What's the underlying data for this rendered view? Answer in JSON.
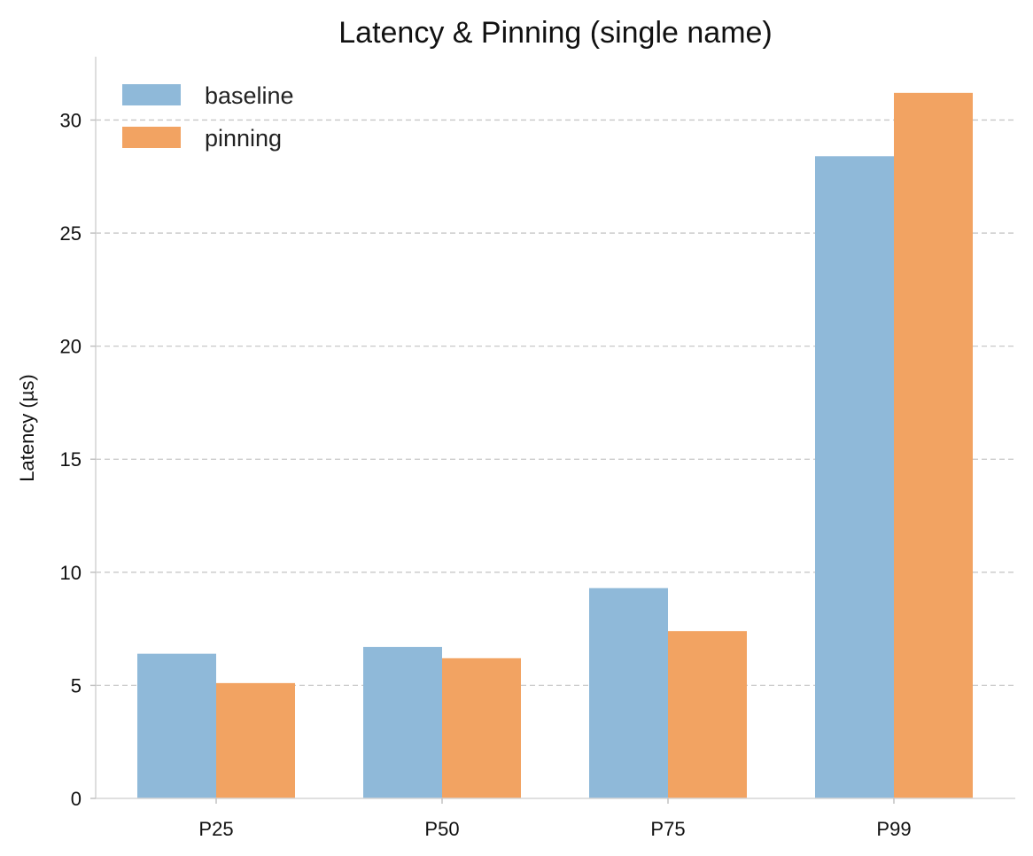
{
  "chart_data": {
    "type": "bar",
    "title": "Latency & Pinning (single name)",
    "xlabel": "",
    "ylabel": "Latency (µs)",
    "categories": [
      "P25",
      "P50",
      "P75",
      "P99"
    ],
    "series": [
      {
        "name": "baseline",
        "values": [
          6.4,
          6.7,
          9.3,
          28.4
        ],
        "color": "#8fb9d9"
      },
      {
        "name": "pinning",
        "values": [
          5.1,
          6.2,
          7.4,
          31.2
        ],
        "color": "#f2a362"
      }
    ],
    "ylim": [
      0,
      32.8
    ],
    "yticks": [
      0,
      5,
      10,
      15,
      20,
      25,
      30
    ],
    "grid": "y dashed",
    "legend_position": "top-left"
  }
}
